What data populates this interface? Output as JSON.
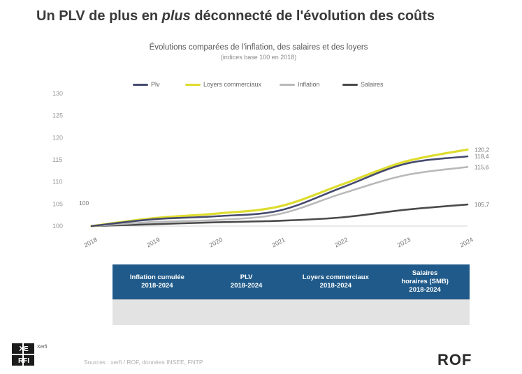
{
  "header": {
    "title_part1": "Un PLV de plus en ",
    "title_em": "plus",
    "title_part2": " déconnecté de l'évolution des coûts"
  },
  "chart_data": {
    "type": "line",
    "title": "Évolutions comparées de l'inflation, des salaires et des loyers",
    "subtitle": "(indices base 100 en 2018)",
    "categories": [
      "2018",
      "2019",
      "2020",
      "2021",
      "2022",
      "2023",
      "2024"
    ],
    "ylim": [
      100,
      135
    ],
    "yticks": [
      "100",
      "105",
      "110",
      "115",
      "120",
      "125",
      "130"
    ],
    "series": [
      {
        "name": "Plv",
        "color": "#454a6e",
        "values": [
          100,
          101.8,
          102.6,
          104.1,
          110.2,
          116.4,
          118.4
        ]
      },
      {
        "name": "Loyers commerciaux",
        "color": "#dedc2e",
        "values": [
          100,
          102.1,
          103.3,
          105.2,
          111.0,
          117.0,
          120.2
        ]
      },
      {
        "name": "Inflation",
        "color": "#b9b9b9",
        "values": [
          100,
          101.1,
          101.6,
          103.2,
          108.6,
          113.4,
          115.6
        ]
      },
      {
        "name": "Salaires",
        "color": "#4a4a4a",
        "values": [
          100,
          100.5,
          101.0,
          101.4,
          102.3,
          104.3,
          105.7
        ]
      }
    ],
    "data_labels": [
      {
        "x": 0,
        "y": 100,
        "text": "100"
      },
      {
        "x": 6,
        "y": 120.2,
        "text": "120,2"
      },
      {
        "x": 6,
        "y": 118.4,
        "text": "118,4"
      },
      {
        "x": 6,
        "y": 115.6,
        "text": "115,6"
      },
      {
        "x": 6,
        "y": 105.7,
        "text": "105,7"
      }
    ],
    "grid": false,
    "legend": "top"
  },
  "table": {
    "headers": [
      [
        "Inflation cumulée",
        "2018-2024"
      ],
      [
        "PLV",
        "2018-2024"
      ],
      [
        "Loyers commerciaux",
        "2018-2024"
      ],
      [
        "Salaires",
        "horaires (SMB)",
        "2018-2024"
      ]
    ],
    "values": [
      "",
      "",
      "",
      ""
    ]
  },
  "footer": {
    "source": "Sources : xerfi / ROF, données INSEE, FNTP",
    "logo_left": [
      "XE",
      "RFI"
    ],
    "logo_left_side": "Xerfi",
    "logo_right": "ROF"
  }
}
